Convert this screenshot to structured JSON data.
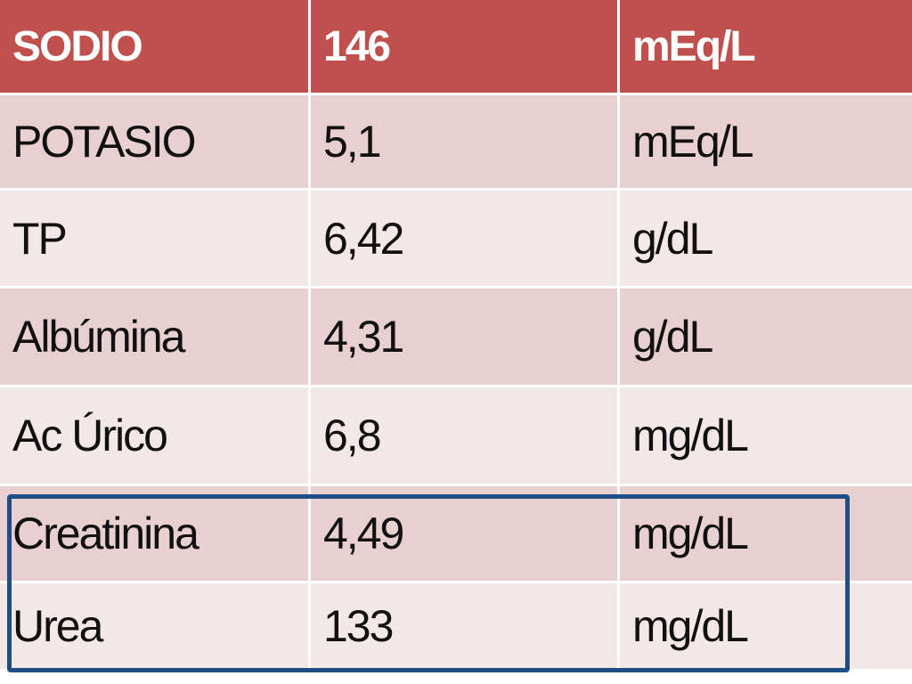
{
  "header": {
    "name": "SODIO",
    "value": "146",
    "unit": "mEq/L"
  },
  "rows": [
    {
      "name": "POTASIO",
      "value": "5,1",
      "unit": "mEq/L"
    },
    {
      "name": "TP",
      "value": "6,42",
      "unit": "g/dL"
    },
    {
      "name": "Albúmina",
      "value": "4,31",
      "unit": "g/dL"
    },
    {
      "name": "Ac Úrico",
      "value": "6,8",
      "unit": "mg/dL"
    },
    {
      "name": "Creatinina",
      "value": "4,49",
      "unit": "mg/dL"
    },
    {
      "name": "Urea",
      "value": "133",
      "unit": "mg/dL"
    }
  ],
  "colors": {
    "header_bg": "#c0504d",
    "row_dark": "#e8cfd0",
    "row_light": "#f3e7e8",
    "highlight_border": "#1f4e86"
  }
}
